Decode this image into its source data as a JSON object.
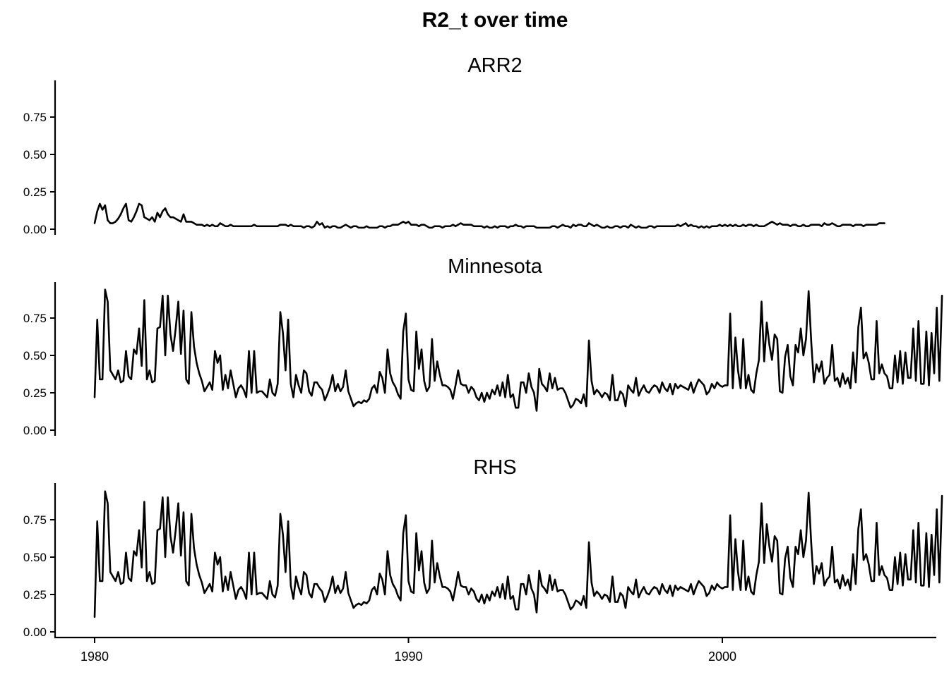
{
  "chart_data": {
    "type": "line",
    "title": "R2_t over time",
    "xlabel": "",
    "ylabel": "",
    "x_ticks": [
      "1980",
      "1990",
      "2000"
    ],
    "x_tick_values": [
      1980,
      1990,
      2000
    ],
    "xlim": [
      1978.7,
      2004.5
    ],
    "y_ticks": [
      "0.00",
      "0.25",
      "0.50",
      "0.75"
    ],
    "y_tick_values": [
      0,
      0.25,
      0.5,
      0.75
    ],
    "ylim": [
      -0.04,
      1.0
    ],
    "grid": false,
    "legend": "none",
    "x_start": 1980.0,
    "x_step": 0.08333,
    "line_color": "#000000",
    "panels": [
      {
        "name": "ARR2",
        "values": [
          0.04,
          0.12,
          0.17,
          0.13,
          0.16,
          0.06,
          0.04,
          0.04,
          0.05,
          0.07,
          0.1,
          0.14,
          0.17,
          0.06,
          0.05,
          0.08,
          0.12,
          0.17,
          0.16,
          0.08,
          0.07,
          0.06,
          0.08,
          0.05,
          0.11,
          0.08,
          0.12,
          0.14,
          0.1,
          0.08,
          0.08,
          0.07,
          0.06,
          0.05,
          0.1,
          0.05,
          0.05,
          0.05,
          0.04,
          0.03,
          0.03,
          0.03,
          0.02,
          0.03,
          0.02,
          0.03,
          0.02,
          0.02,
          0.04,
          0.03,
          0.02,
          0.02,
          0.03,
          0.02,
          0.02,
          0.02,
          0.02,
          0.02,
          0.02,
          0.02,
          0.02,
          0.03,
          0.02,
          0.02,
          0.02,
          0.02,
          0.02,
          0.02,
          0.02,
          0.02,
          0.02,
          0.03,
          0.03,
          0.03,
          0.02,
          0.03,
          0.02,
          0.02,
          0.02,
          0.02,
          0.01,
          0.02,
          0.02,
          0.01,
          0.02,
          0.05,
          0.03,
          0.04,
          0.01,
          0.02,
          0.01,
          0.02,
          0.02,
          0.01,
          0.01,
          0.02,
          0.03,
          0.02,
          0.01,
          0.02,
          0.02,
          0.01,
          0.01,
          0.01,
          0.02,
          0.01,
          0.01,
          0.01,
          0.01,
          0.02,
          0.02,
          0.01,
          0.02,
          0.02,
          0.03,
          0.03,
          0.03,
          0.04,
          0.05,
          0.04,
          0.05,
          0.03,
          0.03,
          0.03,
          0.02,
          0.03,
          0.03,
          0.02,
          0.01,
          0.01,
          0.02,
          0.02,
          0.02,
          0.01,
          0.02,
          0.02,
          0.02,
          0.03,
          0.02,
          0.03,
          0.04,
          0.03,
          0.03,
          0.03,
          0.03,
          0.02,
          0.02,
          0.02,
          0.02,
          0.01,
          0.02,
          0.01,
          0.01,
          0.02,
          0.01,
          0.02,
          0.02,
          0.02,
          0.01,
          0.02,
          0.02,
          0.03,
          0.02,
          0.02,
          0.01,
          0.02,
          0.02,
          0.02,
          0.02,
          0.01,
          0.01,
          0.01,
          0.01,
          0.01,
          0.01,
          0.02,
          0.02,
          0.01,
          0.02,
          0.03,
          0.02,
          0.02,
          0.01,
          0.03,
          0.02,
          0.03,
          0.03,
          0.02,
          0.02,
          0.04,
          0.03,
          0.02,
          0.03,
          0.02,
          0.01,
          0.01,
          0.02,
          0.01,
          0.01,
          0.02,
          0.02,
          0.01,
          0.02,
          0.02,
          0.01,
          0.03,
          0.02,
          0.01,
          0.02,
          0.01,
          0.01,
          0.01,
          0.02,
          0.02,
          0.01,
          0.02,
          0.02,
          0.02,
          0.02,
          0.02,
          0.02,
          0.02,
          0.02,
          0.03,
          0.02,
          0.03,
          0.04,
          0.02,
          0.03,
          0.02,
          0.02,
          0.01,
          0.02,
          0.01,
          0.02,
          0.01,
          0.02,
          0.02,
          0.02,
          0.03,
          0.02,
          0.03,
          0.02,
          0.03,
          0.02,
          0.03,
          0.02,
          0.02,
          0.03,
          0.02,
          0.03,
          0.03,
          0.02,
          0.03,
          0.02,
          0.02,
          0.02,
          0.03,
          0.04,
          0.05,
          0.04,
          0.03,
          0.04,
          0.03,
          0.03,
          0.03,
          0.02,
          0.03,
          0.03,
          0.02,
          0.02,
          0.03,
          0.02,
          0.02,
          0.03,
          0.03,
          0.03,
          0.03,
          0.02,
          0.04,
          0.03,
          0.03,
          0.04,
          0.03,
          0.02,
          0.02,
          0.03,
          0.03,
          0.03,
          0.03,
          0.02,
          0.03,
          0.03,
          0.03,
          0.02,
          0.03,
          0.03,
          0.03,
          0.03,
          0.03,
          0.04,
          0.04,
          0.04
        ],
        "y_ticks": [
          "0.00",
          "0.25",
          "0.50",
          "0.75"
        ]
      },
      {
        "name": "Minnesota",
        "values": [
          0.22,
          0.74,
          0.34,
          0.34,
          0.94,
          0.86,
          0.4,
          0.37,
          0.34,
          0.4,
          0.32,
          0.33,
          0.53,
          0.36,
          0.34,
          0.54,
          0.51,
          0.68,
          0.43,
          0.87,
          0.34,
          0.4,
          0.32,
          0.33,
          0.68,
          0.69,
          0.9,
          0.5,
          0.9,
          0.64,
          0.53,
          0.68,
          0.86,
          0.51,
          0.8,
          0.34,
          0.31,
          0.79,
          0.56,
          0.45,
          0.38,
          0.33,
          0.26,
          0.29,
          0.32,
          0.27,
          0.53,
          0.45,
          0.5,
          0.27,
          0.37,
          0.28,
          0.4,
          0.31,
          0.22,
          0.28,
          0.3,
          0.27,
          0.22,
          0.53,
          0.25,
          0.53,
          0.25,
          0.26,
          0.26,
          0.24,
          0.22,
          0.34,
          0.25,
          0.23,
          0.31,
          0.79,
          0.65,
          0.4,
          0.74,
          0.31,
          0.22,
          0.37,
          0.3,
          0.25,
          0.4,
          0.38,
          0.26,
          0.23,
          0.32,
          0.32,
          0.29,
          0.27,
          0.2,
          0.24,
          0.29,
          0.37,
          0.26,
          0.31,
          0.26,
          0.29,
          0.4,
          0.26,
          0.21,
          0.16,
          0.18,
          0.19,
          0.18,
          0.2,
          0.19,
          0.21,
          0.28,
          0.3,
          0.25,
          0.39,
          0.35,
          0.25,
          0.54,
          0.38,
          0.32,
          0.29,
          0.24,
          0.21,
          0.66,
          0.78,
          0.34,
          0.27,
          0.26,
          0.66,
          0.41,
          0.54,
          0.33,
          0.26,
          0.29,
          0.61,
          0.33,
          0.46,
          0.37,
          0.3,
          0.3,
          0.29,
          0.27,
          0.21,
          0.3,
          0.4,
          0.31,
          0.3,
          0.3,
          0.25,
          0.29,
          0.27,
          0.22,
          0.2,
          0.25,
          0.19,
          0.25,
          0.21,
          0.27,
          0.24,
          0.3,
          0.23,
          0.32,
          0.22,
          0.37,
          0.22,
          0.24,
          0.15,
          0.15,
          0.32,
          0.32,
          0.25,
          0.38,
          0.29,
          0.25,
          0.13,
          0.41,
          0.31,
          0.29,
          0.26,
          0.38,
          0.28,
          0.35,
          0.27,
          0.28,
          0.28,
          0.25,
          0.2,
          0.15,
          0.17,
          0.21,
          0.2,
          0.18,
          0.24,
          0.16,
          0.6,
          0.33,
          0.24,
          0.27,
          0.25,
          0.22,
          0.25,
          0.24,
          0.2,
          0.37,
          0.2,
          0.2,
          0.26,
          0.24,
          0.16,
          0.3,
          0.27,
          0.25,
          0.35,
          0.23,
          0.27,
          0.3,
          0.26,
          0.25,
          0.28,
          0.3,
          0.29,
          0.25,
          0.32,
          0.28,
          0.26,
          0.31,
          0.24,
          0.31,
          0.28,
          0.3,
          0.29,
          0.28,
          0.27,
          0.32,
          0.25,
          0.3,
          0.34,
          0.32,
          0.3,
          0.24,
          0.26,
          0.31,
          0.28,
          0.32,
          0.3,
          0.29,
          0.3,
          0.3,
          0.78,
          0.28,
          0.62,
          0.4,
          0.28,
          0.61,
          0.28,
          0.37,
          0.27,
          0.25,
          0.38,
          0.47,
          0.86,
          0.46,
          0.72,
          0.57,
          0.47,
          0.64,
          0.61,
          0.26,
          0.25,
          0.49,
          0.57,
          0.36,
          0.3,
          0.57,
          0.52,
          0.68,
          0.5,
          0.61,
          0.93,
          0.59,
          0.32,
          0.44,
          0.39,
          0.46,
          0.31,
          0.35,
          0.37,
          0.57,
          0.33,
          0.35,
          0.29,
          0.38,
          0.31,
          0.35,
          0.28,
          0.52,
          0.32,
          0.69,
          0.82,
          0.48,
          0.52,
          0.45,
          0.34,
          0.34,
          0.73,
          0.38,
          0.44,
          0.38,
          0.36,
          0.28,
          0.28,
          0.5,
          0.32,
          0.53,
          0.31,
          0.52,
          0.35,
          0.35,
          0.68,
          0.33,
          0.73,
          0.31,
          0.31,
          0.66,
          0.3,
          0.65,
          0.38,
          0.82,
          0.33,
          0.9
        ]
      },
      {
        "name": "RHS",
        "values": [
          0.1,
          0.74,
          0.34,
          0.34,
          0.94,
          0.86,
          0.4,
          0.37,
          0.34,
          0.4,
          0.32,
          0.33,
          0.53,
          0.36,
          0.34,
          0.54,
          0.51,
          0.68,
          0.43,
          0.87,
          0.34,
          0.4,
          0.32,
          0.33,
          0.68,
          0.69,
          0.9,
          0.5,
          0.9,
          0.64,
          0.53,
          0.68,
          0.86,
          0.51,
          0.8,
          0.34,
          0.31,
          0.79,
          0.56,
          0.45,
          0.38,
          0.33,
          0.26,
          0.29,
          0.32,
          0.27,
          0.53,
          0.45,
          0.5,
          0.27,
          0.37,
          0.28,
          0.4,
          0.31,
          0.22,
          0.28,
          0.3,
          0.27,
          0.22,
          0.53,
          0.25,
          0.53,
          0.25,
          0.26,
          0.26,
          0.24,
          0.22,
          0.34,
          0.25,
          0.23,
          0.31,
          0.79,
          0.65,
          0.4,
          0.74,
          0.31,
          0.22,
          0.37,
          0.3,
          0.25,
          0.4,
          0.38,
          0.26,
          0.23,
          0.32,
          0.32,
          0.29,
          0.27,
          0.2,
          0.24,
          0.29,
          0.37,
          0.26,
          0.31,
          0.26,
          0.29,
          0.4,
          0.26,
          0.21,
          0.16,
          0.18,
          0.19,
          0.18,
          0.2,
          0.19,
          0.21,
          0.28,
          0.3,
          0.25,
          0.39,
          0.35,
          0.25,
          0.54,
          0.38,
          0.32,
          0.29,
          0.24,
          0.21,
          0.66,
          0.78,
          0.34,
          0.27,
          0.26,
          0.66,
          0.41,
          0.54,
          0.33,
          0.26,
          0.29,
          0.61,
          0.33,
          0.46,
          0.37,
          0.3,
          0.3,
          0.29,
          0.27,
          0.21,
          0.3,
          0.4,
          0.31,
          0.3,
          0.3,
          0.25,
          0.29,
          0.27,
          0.22,
          0.2,
          0.25,
          0.19,
          0.25,
          0.21,
          0.27,
          0.24,
          0.3,
          0.23,
          0.32,
          0.22,
          0.37,
          0.22,
          0.24,
          0.15,
          0.15,
          0.32,
          0.32,
          0.25,
          0.38,
          0.29,
          0.25,
          0.13,
          0.41,
          0.31,
          0.29,
          0.26,
          0.38,
          0.28,
          0.35,
          0.27,
          0.28,
          0.28,
          0.25,
          0.2,
          0.15,
          0.17,
          0.21,
          0.2,
          0.18,
          0.24,
          0.16,
          0.6,
          0.33,
          0.24,
          0.27,
          0.25,
          0.22,
          0.25,
          0.24,
          0.2,
          0.37,
          0.2,
          0.2,
          0.26,
          0.24,
          0.16,
          0.3,
          0.27,
          0.25,
          0.35,
          0.23,
          0.27,
          0.3,
          0.26,
          0.25,
          0.28,
          0.3,
          0.29,
          0.25,
          0.32,
          0.28,
          0.26,
          0.31,
          0.24,
          0.31,
          0.28,
          0.3,
          0.29,
          0.28,
          0.27,
          0.32,
          0.25,
          0.3,
          0.34,
          0.32,
          0.3,
          0.24,
          0.26,
          0.31,
          0.28,
          0.32,
          0.3,
          0.29,
          0.3,
          0.3,
          0.78,
          0.28,
          0.62,
          0.4,
          0.28,
          0.61,
          0.28,
          0.37,
          0.27,
          0.25,
          0.38,
          0.47,
          0.86,
          0.46,
          0.72,
          0.57,
          0.47,
          0.64,
          0.61,
          0.26,
          0.25,
          0.49,
          0.57,
          0.36,
          0.3,
          0.57,
          0.52,
          0.68,
          0.5,
          0.61,
          0.93,
          0.59,
          0.32,
          0.44,
          0.39,
          0.46,
          0.31,
          0.35,
          0.37,
          0.57,
          0.33,
          0.35,
          0.29,
          0.38,
          0.31,
          0.35,
          0.28,
          0.52,
          0.32,
          0.69,
          0.82,
          0.48,
          0.52,
          0.45,
          0.34,
          0.34,
          0.73,
          0.38,
          0.44,
          0.38,
          0.36,
          0.28,
          0.28,
          0.5,
          0.32,
          0.53,
          0.31,
          0.52,
          0.35,
          0.35,
          0.68,
          0.33,
          0.73,
          0.31,
          0.31,
          0.66,
          0.3,
          0.65,
          0.38,
          0.82,
          0.33,
          0.91
        ]
      }
    ]
  }
}
